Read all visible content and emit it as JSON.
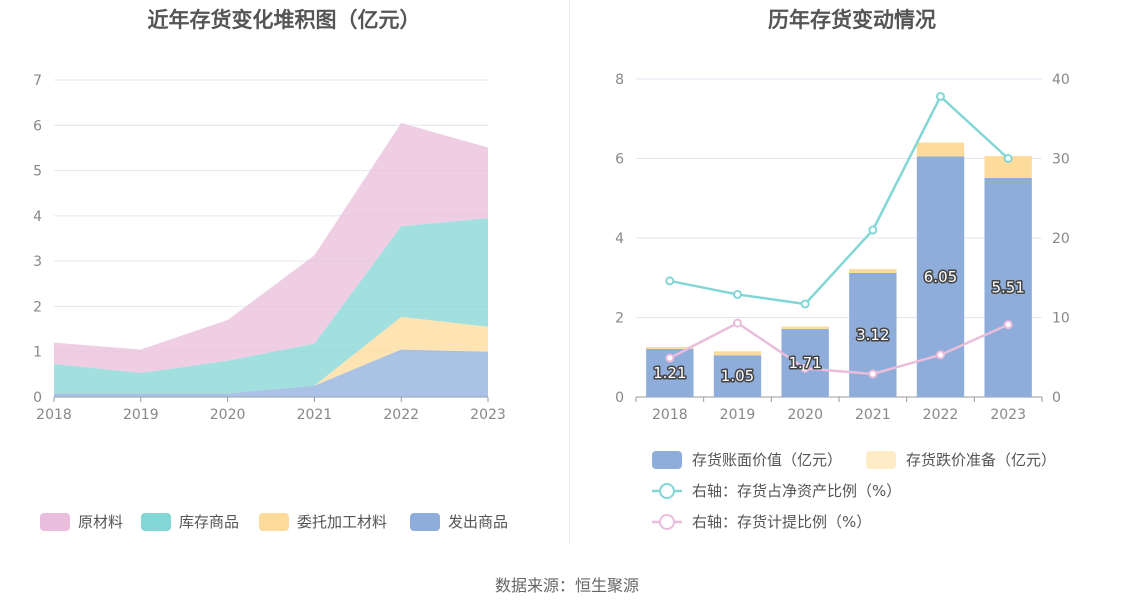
{
  "source": "数据来源：恒生聚源",
  "charts": {
    "left": {
      "title": "近年存货变化堆积图（亿元）",
      "chart_data": {
        "type": "area",
        "stacked": true,
        "categories": [
          "2018",
          "2019",
          "2020",
          "2021",
          "2022",
          "2023"
        ],
        "ylim": [
          0,
          7
        ],
        "yticks": [
          0,
          1,
          2,
          3,
          4,
          5,
          6,
          7
        ],
        "series": [
          {
            "name": "发出商品",
            "color": "#8eaddb",
            "values": [
              0.08,
              0.08,
              0.08,
              0.25,
              1.05,
              1.0
            ]
          },
          {
            "name": "委托加工材料",
            "color": "#fddb9a",
            "values": [
              0.0,
              0.0,
              0.0,
              0.0,
              0.72,
              0.55
            ]
          },
          {
            "name": "库存商品",
            "color": "#83d6d6",
            "values": [
              0.65,
              0.45,
              0.72,
              0.93,
              2.0,
              2.4
            ]
          },
          {
            "name": "原材料",
            "color": "#e9bddb",
            "values": [
              0.47,
              0.52,
              0.9,
              1.95,
              2.28,
              1.56
            ]
          }
        ],
        "legend_order": [
          "原材料",
          "库存商品",
          "委托加工材料",
          "发出商品"
        ],
        "legend_position": "bottom",
        "grid": true
      }
    },
    "right": {
      "title": "历年存货变动情况",
      "chart_data": {
        "type": "bar",
        "stacked": true,
        "categories": [
          "2018",
          "2019",
          "2020",
          "2021",
          "2022",
          "2023"
        ],
        "ylim_left": [
          0,
          8
        ],
        "yticks_left": [
          0,
          2,
          4,
          6,
          8
        ],
        "ylim_right": [
          0,
          40
        ],
        "yticks_right": [
          0,
          10,
          20,
          30,
          40
        ],
        "bars": [
          {
            "name": "存货账面价值（亿元）",
            "color": "#8eaddb",
            "values": [
              1.21,
              1.05,
              1.71,
              3.12,
              6.05,
              5.51
            ],
            "labels": [
              "1.21",
              "1.05",
              "1.71",
              "3.12",
              "6.05",
              "5.51"
            ]
          },
          {
            "name": "存货跌价准备（亿元）",
            "color": "#fddb9a",
            "values": [
              0.05,
              0.1,
              0.06,
              0.1,
              0.35,
              0.55
            ]
          }
        ],
        "lines": [
          {
            "name": "右轴：存货占净资产比例（%）",
            "color": "#83d6d6",
            "axis": "right",
            "values": [
              14.6,
              12.9,
              11.7,
              21.0,
              37.8,
              30.0
            ]
          },
          {
            "name": "右轴：存货计提比例（%）",
            "color": "#e9bddb",
            "axis": "right",
            "values": [
              4.9,
              9.3,
              3.6,
              2.9,
              5.3,
              9.1
            ]
          }
        ],
        "legend_position": "bottom",
        "grid": true
      }
    }
  }
}
